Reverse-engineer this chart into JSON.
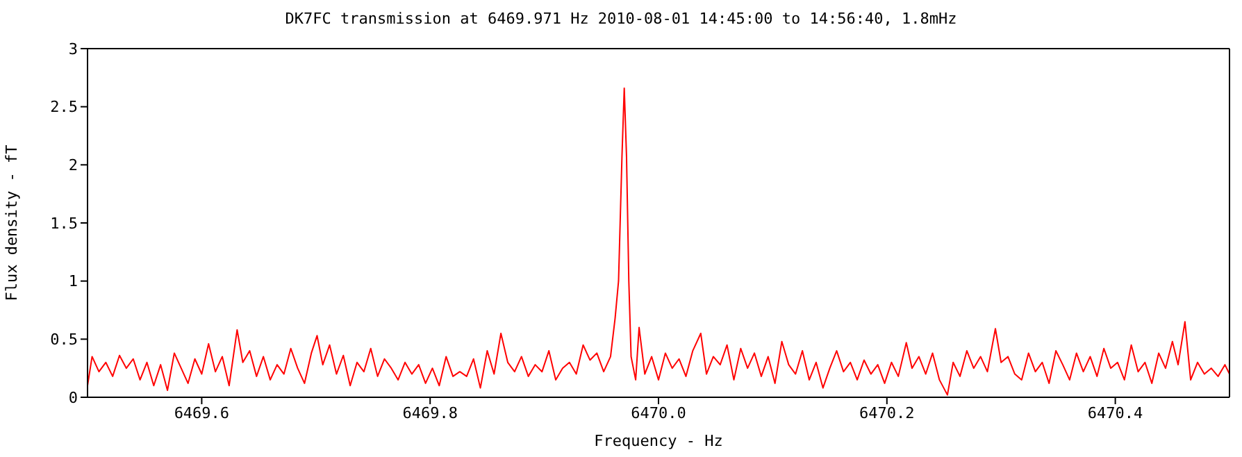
{
  "chart_data": {
    "type": "line",
    "title": "DK7FC transmission at 6469.971 Hz 2010-08-01 14:45:00 to 14:56:40, 1.8mHz",
    "xlabel": "Frequency - Hz",
    "ylabel": "Flux density - fT",
    "xlim": [
      6469.5,
      6470.5
    ],
    "xticks": [
      {
        "value": 6469.6,
        "label": "6469.6"
      },
      {
        "value": 6469.8,
        "label": "6469.8"
      },
      {
        "value": 6470.0,
        "label": "6470.0"
      },
      {
        "value": 6470.2,
        "label": "6470.2"
      },
      {
        "value": 6470.4,
        "label": "6470.4"
      }
    ],
    "ylim": [
      0,
      3
    ],
    "yticks": [
      0,
      0.5,
      1,
      1.5,
      2,
      2.5,
      3
    ],
    "grid": false,
    "legend": false,
    "marker": "none",
    "line_style": "solid",
    "series": [
      {
        "color": "#ff0000",
        "x": [
          6469.5,
          6469.504,
          6469.51,
          6469.516,
          6469.522,
          6469.528,
          6469.534,
          6469.54,
          6469.546,
          6469.552,
          6469.558,
          6469.564,
          6469.57,
          6469.576,
          6469.582,
          6469.588,
          6469.594,
          6469.6,
          6469.606,
          6469.612,
          6469.618,
          6469.624,
          6469.631,
          6469.636,
          6469.642,
          6469.648,
          6469.654,
          6469.66,
          6469.666,
          6469.672,
          6469.678,
          6469.684,
          6469.69,
          6469.696,
          6469.701,
          6469.706,
          6469.712,
          6469.718,
          6469.724,
          6469.73,
          6469.736,
          6469.742,
          6469.748,
          6469.754,
          6469.76,
          6469.766,
          6469.772,
          6469.778,
          6469.784,
          6469.79,
          6469.796,
          6469.802,
          6469.808,
          6469.814,
          6469.82,
          6469.826,
          6469.832,
          6469.838,
          6469.844,
          6469.85,
          6469.856,
          6469.862,
          6469.868,
          6469.874,
          6469.88,
          6469.886,
          6469.892,
          6469.898,
          6469.904,
          6469.91,
          6469.916,
          6469.922,
          6469.928,
          6469.934,
          6469.94,
          6469.946,
          6469.952,
          6469.958,
          6469.962,
          6469.965,
          6469.968,
          6469.97,
          6469.972,
          6469.974,
          6469.976,
          6469.98,
          6469.983,
          6469.988,
          6469.994,
          6470.0,
          6470.006,
          6470.012,
          6470.018,
          6470.024,
          6470.03,
          6470.037,
          6470.042,
          6470.048,
          6470.054,
          6470.06,
          6470.066,
          6470.072,
          6470.078,
          6470.084,
          6470.09,
          6470.096,
          6470.102,
          6470.108,
          6470.114,
          6470.12,
          6470.126,
          6470.132,
          6470.138,
          6470.144,
          6470.15,
          6470.156,
          6470.162,
          6470.168,
          6470.174,
          6470.18,
          6470.186,
          6470.192,
          6470.198,
          6470.204,
          6470.21,
          6470.217,
          6470.222,
          6470.228,
          6470.234,
          6470.24,
          6470.246,
          6470.253,
          6470.258,
          6470.264,
          6470.27,
          6470.276,
          6470.282,
          6470.288,
          6470.295,
          6470.3,
          6470.306,
          6470.312,
          6470.318,
          6470.324,
          6470.33,
          6470.336,
          6470.342,
          6470.348,
          6470.354,
          6470.36,
          6470.366,
          6470.372,
          6470.378,
          6470.384,
          6470.39,
          6470.396,
          6470.402,
          6470.408,
          6470.414,
          6470.42,
          6470.426,
          6470.432,
          6470.438,
          6470.444,
          6470.45,
          6470.455,
          6470.461,
          6470.466,
          6470.472,
          6470.478,
          6470.484,
          6470.49,
          6470.496,
          6470.5
        ],
        "values": [
          0.1,
          0.35,
          0.22,
          0.3,
          0.18,
          0.36,
          0.25,
          0.33,
          0.15,
          0.3,
          0.1,
          0.28,
          0.06,
          0.38,
          0.25,
          0.12,
          0.33,
          0.2,
          0.46,
          0.22,
          0.35,
          0.1,
          0.58,
          0.3,
          0.4,
          0.18,
          0.35,
          0.15,
          0.28,
          0.2,
          0.42,
          0.25,
          0.12,
          0.38,
          0.53,
          0.28,
          0.45,
          0.2,
          0.36,
          0.1,
          0.3,
          0.22,
          0.42,
          0.18,
          0.33,
          0.25,
          0.15,
          0.3,
          0.2,
          0.28,
          0.12,
          0.25,
          0.1,
          0.35,
          0.18,
          0.22,
          0.18,
          0.33,
          0.08,
          0.4,
          0.2,
          0.55,
          0.3,
          0.22,
          0.35,
          0.18,
          0.28,
          0.22,
          0.4,
          0.15,
          0.25,
          0.3,
          0.2,
          0.45,
          0.32,
          0.38,
          0.22,
          0.35,
          0.68,
          1.0,
          2.07,
          2.66,
          2.07,
          1.0,
          0.35,
          0.15,
          0.6,
          0.2,
          0.35,
          0.15,
          0.38,
          0.25,
          0.33,
          0.18,
          0.4,
          0.55,
          0.2,
          0.35,
          0.28,
          0.45,
          0.15,
          0.42,
          0.25,
          0.38,
          0.18,
          0.35,
          0.12,
          0.48,
          0.28,
          0.2,
          0.4,
          0.15,
          0.3,
          0.08,
          0.25,
          0.4,
          0.22,
          0.3,
          0.15,
          0.32,
          0.2,
          0.28,
          0.12,
          0.3,
          0.18,
          0.47,
          0.25,
          0.35,
          0.2,
          0.38,
          0.15,
          0.02,
          0.3,
          0.18,
          0.4,
          0.25,
          0.35,
          0.22,
          0.59,
          0.3,
          0.35,
          0.2,
          0.15,
          0.38,
          0.22,
          0.3,
          0.12,
          0.4,
          0.28,
          0.15,
          0.38,
          0.22,
          0.35,
          0.18,
          0.42,
          0.25,
          0.3,
          0.15,
          0.45,
          0.22,
          0.3,
          0.12,
          0.38,
          0.25,
          0.48,
          0.28,
          0.65,
          0.15,
          0.3,
          0.2,
          0.25,
          0.18,
          0.28,
          0.2
        ]
      }
    ]
  }
}
